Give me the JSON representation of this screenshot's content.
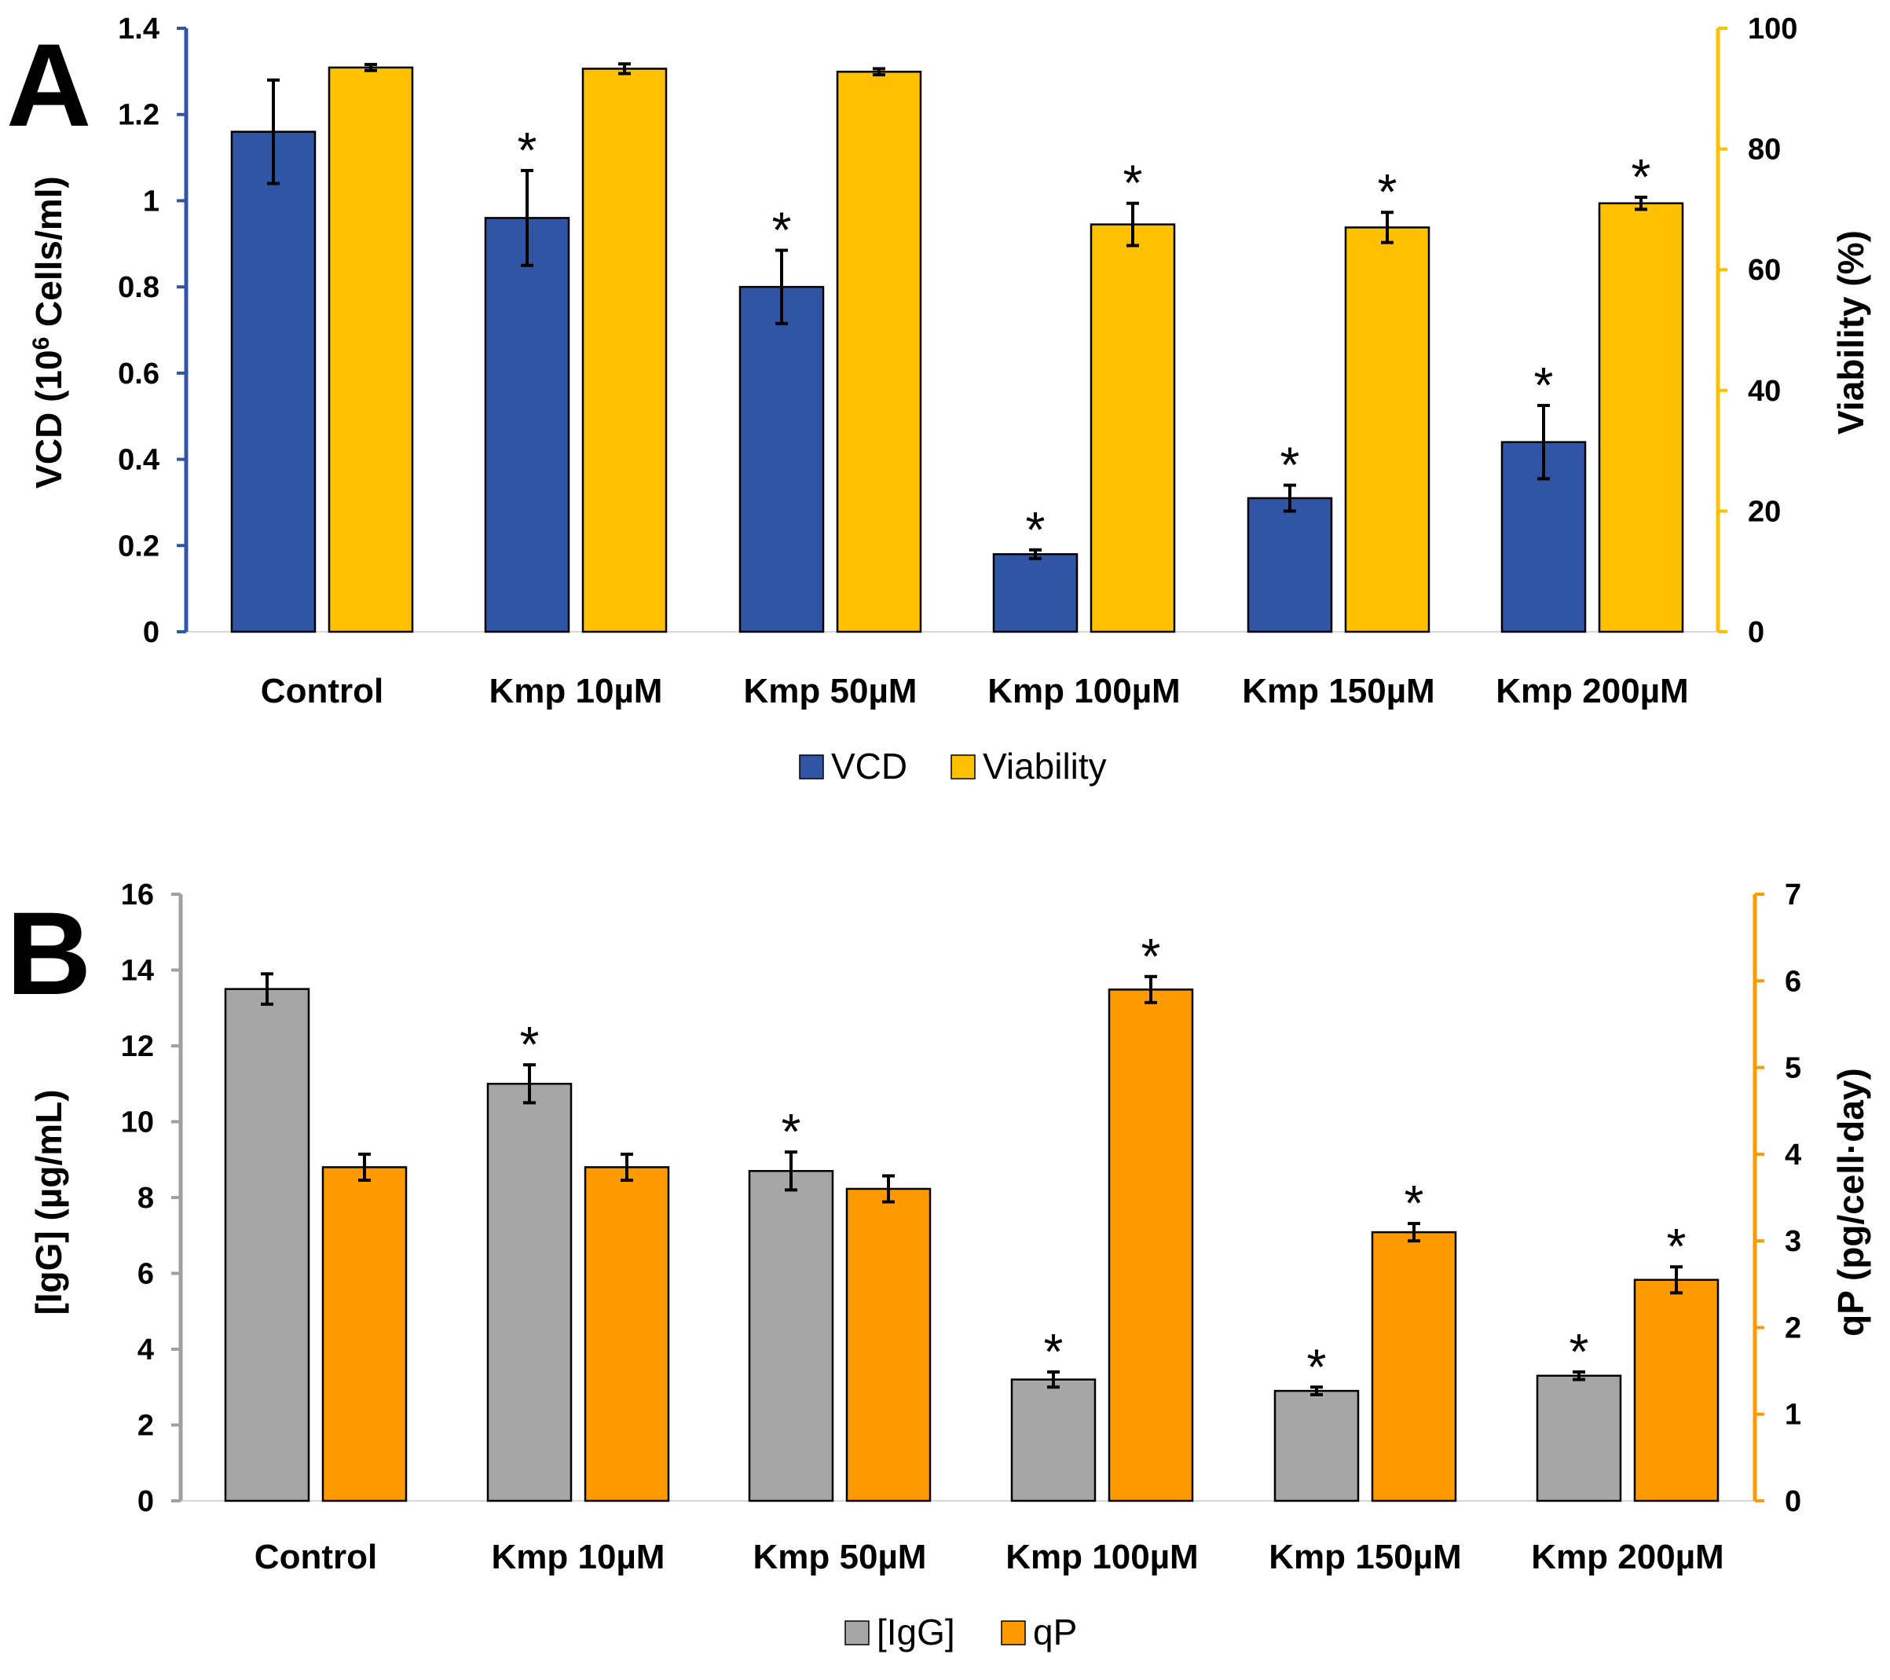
{
  "chart_data": [
    {
      "type": "bar",
      "panel_label": "A",
      "categories": [
        "Control",
        "Kmp 10µM",
        "Kmp 50µM",
        "Kmp 100µM",
        "Kmp 150µM",
        "Kmp 200µM"
      ],
      "y_left": {
        "label_pre": "VCD (10",
        "label_sup": "6",
        "label_post": " Cells/ml)",
        "ylim": [
          0,
          1.4
        ],
        "ticks": [
          "0",
          "0.2",
          "0.4",
          "0.6",
          "0.8",
          "1",
          "1.2",
          "1.4"
        ],
        "color": "#2f55a4"
      },
      "y_right": {
        "label": "Viability (%)",
        "ylim": [
          0,
          100
        ],
        "ticks": [
          "0",
          "20",
          "40",
          "60",
          "80",
          "100"
        ],
        "color": "#ffc000"
      },
      "series": [
        {
          "name": "VCD",
          "axis": "left",
          "color": "#2f55a4",
          "values": [
            1.16,
            0.96,
            0.8,
            0.18,
            0.31,
            0.44
          ],
          "errors": [
            0.12,
            0.11,
            0.085,
            0.01,
            0.03,
            0.085
          ],
          "significant": [
            false,
            true,
            true,
            true,
            true,
            true
          ]
        },
        {
          "name": "Viability",
          "axis": "right",
          "color": "#ffc000",
          "values": [
            93.5,
            93.3,
            92.8,
            67.5,
            67,
            71
          ],
          "errors": [
            0.5,
            0.8,
            0.5,
            3.5,
            2.5,
            1.0
          ],
          "significant": [
            false,
            false,
            false,
            true,
            true,
            true
          ]
        }
      ],
      "significance_marker": "*",
      "legend": [
        "VCD",
        "Viability"
      ]
    },
    {
      "type": "bar",
      "panel_label": "B",
      "categories": [
        "Control",
        "Kmp 10µM",
        "Kmp 50µM",
        "Kmp 100µM",
        "Kmp 150µM",
        "Kmp 200µM"
      ],
      "y_left": {
        "label": "[IgG] (µg/mL)",
        "ylim": [
          0,
          16
        ],
        "ticks": [
          "0",
          "2",
          "4",
          "6",
          "8",
          "10",
          "12",
          "14",
          "16"
        ],
        "color": "#a0a0a0"
      },
      "y_right": {
        "label": "qP (pg/cell·day)",
        "ylim": [
          0,
          7
        ],
        "ticks": [
          "0",
          "1",
          "2",
          "3",
          "4",
          "5",
          "6",
          "7"
        ],
        "color": "#ff9900"
      },
      "series": [
        {
          "name": "[IgG]",
          "axis": "left",
          "color": "#a6a6a6",
          "values": [
            13.5,
            11.0,
            8.7,
            3.2,
            2.9,
            3.3
          ],
          "errors": [
            0.4,
            0.5,
            0.5,
            0.2,
            0.1,
            0.1
          ],
          "significant": [
            false,
            true,
            true,
            true,
            true,
            true
          ]
        },
        {
          "name": "qP",
          "axis": "right",
          "color": "#ff9900",
          "values": [
            3.85,
            3.85,
            3.6,
            5.9,
            3.1,
            2.55
          ],
          "errors": [
            0.15,
            0.15,
            0.15,
            0.15,
            0.1,
            0.15
          ],
          "significant": [
            false,
            false,
            false,
            true,
            true,
            true
          ]
        }
      ],
      "significance_marker": "*",
      "legend": [
        "[IgG]",
        "qP"
      ]
    }
  ]
}
